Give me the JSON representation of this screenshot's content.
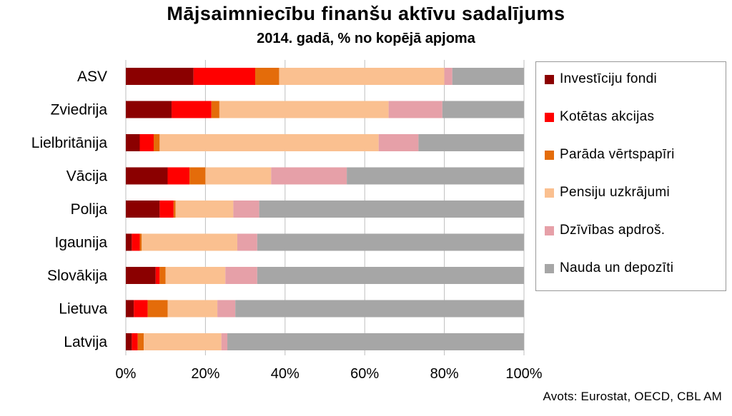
{
  "chart_data": {
    "type": "bar",
    "orientation": "horizontal",
    "stacked": true,
    "title": "Mājsaimniecību finanšu aktīvu sadalījums",
    "subtitle": "2014. gadā, % no kopējā apjoma",
    "categories": [
      "ASV",
      "Zviedrija",
      "Lielbritānija",
      "Vācija",
      "Polija",
      "Igaunija",
      "Slovākija",
      "Lietuva",
      "Latvija"
    ],
    "series": [
      {
        "name": "Investīciju fondi",
        "color": "#8b0000",
        "values": [
          17,
          11.5,
          3.5,
          10.5,
          8.5,
          1.5,
          7.5,
          2,
          1.5
        ]
      },
      {
        "name": "Kotētas akcijas",
        "color": "#ff0000",
        "values": [
          15.5,
          10,
          3.5,
          5.5,
          3.5,
          2,
          1,
          3.5,
          1.5
        ]
      },
      {
        "name": "Parāda vērtspapīri",
        "color": "#e46c0a",
        "values": [
          6,
          2,
          1.5,
          4,
          0.5,
          0.5,
          1.5,
          5,
          1.5
        ]
      },
      {
        "name": "Pensiju uzkrājumi",
        "color": "#fac090",
        "values": [
          41.5,
          42.5,
          55,
          16.5,
          14.5,
          24,
          15,
          12.5,
          19.5
        ]
      },
      {
        "name": "Dzīvības apdroš.",
        "color": "#e6a0a8",
        "values": [
          2,
          13.5,
          10,
          19,
          6.5,
          5,
          8,
          4.5,
          1.5
        ]
      },
      {
        "name": "Nauda un depozīti",
        "color": "#a6a6a6",
        "values": [
          18,
          20.5,
          26.5,
          44.5,
          66.5,
          67,
          67,
          72.5,
          74.5
        ]
      }
    ],
    "xaxis": {
      "min": 0,
      "max": 100,
      "ticks": [
        0,
        20,
        40,
        60,
        80,
        100
      ],
      "tick_labels": [
        "0%",
        "20%",
        "40%",
        "60%",
        "80%",
        "100%"
      ]
    },
    "grid": true,
    "legend": {
      "placement": "right"
    }
  },
  "source_note": "Avots: Eurostat, OECD, CBL AM"
}
